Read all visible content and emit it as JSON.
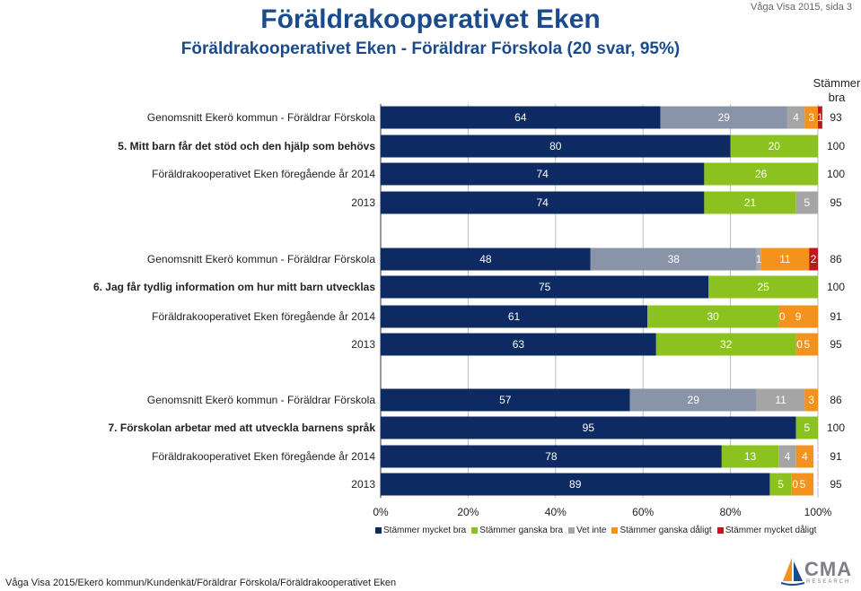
{
  "header": {
    "title": "Föräldrakooperativet Eken",
    "subtitle": "Föräldrakooperativet Eken - Föräldrar Förskola (20 svar, 95%)",
    "page_info": "Våga Visa 2015, sida 3",
    "agree_header": "Stämmer bra"
  },
  "footer": {
    "path": "Våga Visa 2015/Ekerö kommun/Kundenkät/Föräldrar Förskola/Föräldrakooperativet Eken",
    "logo_text": "CMA",
    "logo_sub": "RESEARCH"
  },
  "chart_data": {
    "type": "bar",
    "orientation": "horizontal",
    "stacked": true,
    "xlim": [
      0,
      100
    ],
    "xticks": [
      "0%",
      "20%",
      "40%",
      "60%",
      "80%",
      "100%"
    ],
    "series": [
      {
        "name": "Stämmer mycket bra",
        "color": "#0e2a63"
      },
      {
        "name": "Stämmer ganska bra",
        "color": "#8cc21f"
      },
      {
        "name": "Vet inte",
        "color": "#a5a5a5"
      },
      {
        "name": "Stämmer ganska dåligt",
        "color": "#f3921c"
      },
      {
        "name": "Stämmer mycket dåligt",
        "color": "#c0151b"
      }
    ],
    "kommun_colors": [
      "#0e2a63",
      "#8a94a8",
      "#a5a5a5",
      "#f3921c",
      "#c0151b"
    ],
    "groups": [
      {
        "rows": [
          {
            "label": "Genomsnitt Ekerö kommun - Föräldrar Förskola",
            "kind": "kommun",
            "values": [
              64,
              29,
              4,
              3,
              1
            ],
            "labels": [
              "64",
              "29",
              "4",
              "3",
              "1"
            ],
            "agree": "93"
          },
          {
            "label": "5. Mitt barn får det stöd och den hjälp som behövs",
            "kind": "question",
            "values": [
              80,
              20,
              0,
              0,
              0
            ],
            "labels": [
              "80",
              "20",
              "0",
              "",
              ""
            ],
            "agree": "100"
          },
          {
            "label": "Föräldrakooperativet Eken föregående år 2014",
            "kind": "normal",
            "values": [
              74,
              26,
              0,
              0,
              0
            ],
            "labels": [
              "74",
              "26",
              "0",
              "",
              ""
            ],
            "agree": "100"
          },
          {
            "label": "2013",
            "kind": "normal",
            "values": [
              74,
              21,
              5,
              0,
              0
            ],
            "labels": [
              "74",
              "21",
              "5",
              "0",
              ""
            ],
            "agree": "95"
          }
        ]
      },
      {
        "rows": [
          {
            "label": "Genomsnitt Ekerö kommun - Föräldrar Förskola",
            "kind": "kommun",
            "values": [
              48,
              38,
              1,
              11,
              2
            ],
            "labels": [
              "48",
              "38",
              "1",
              "11",
              "2"
            ],
            "agree": "86"
          },
          {
            "label": "6. Jag får tydlig information om hur mitt barn utvecklas",
            "kind": "question",
            "values": [
              75,
              25,
              0,
              0,
              0
            ],
            "labels": [
              "75",
              "25",
              "0",
              "",
              ""
            ],
            "agree": "100"
          },
          {
            "label": "Föräldrakooperativet Eken föregående år 2014",
            "kind": "normal",
            "values": [
              61,
              30,
              0,
              9,
              0
            ],
            "labels": [
              "61",
              "30",
              "0",
              "9",
              "0"
            ],
            "agree": "91"
          },
          {
            "label": "2013",
            "kind": "normal",
            "values": [
              63,
              32,
              0,
              5,
              0
            ],
            "labels": [
              "63",
              "32",
              "0",
              "5",
              "0"
            ],
            "agree": "95"
          }
        ]
      },
      {
        "rows": [
          {
            "label": "Genomsnitt Ekerö kommun - Föräldrar Förskola",
            "kind": "kommun",
            "values": [
              57,
              29,
              11,
              3,
              0
            ],
            "labels": [
              "57",
              "29",
              "11",
              "3",
              "0"
            ],
            "agree": "86"
          },
          {
            "label": "7. Förskolan arbetar med att utveckla barnens språk",
            "kind": "question",
            "values": [
              95,
              5,
              0,
              0,
              0
            ],
            "labels": [
              "95",
              "5",
              "0",
              "",
              ""
            ],
            "agree": "100"
          },
          {
            "label": "Föräldrakooperativet Eken föregående år 2014",
            "kind": "normal",
            "values": [
              78,
              13,
              4,
              4,
              0
            ],
            "labels": [
              "78",
              "13",
              "4",
              "4",
              "0"
            ],
            "agree": "91"
          },
          {
            "label": "2013",
            "kind": "normal",
            "values": [
              89,
              5,
              0,
              5,
              0
            ],
            "labels": [
              "89",
              "5",
              "0",
              "5",
              "0"
            ],
            "agree": "95"
          }
        ]
      }
    ]
  }
}
